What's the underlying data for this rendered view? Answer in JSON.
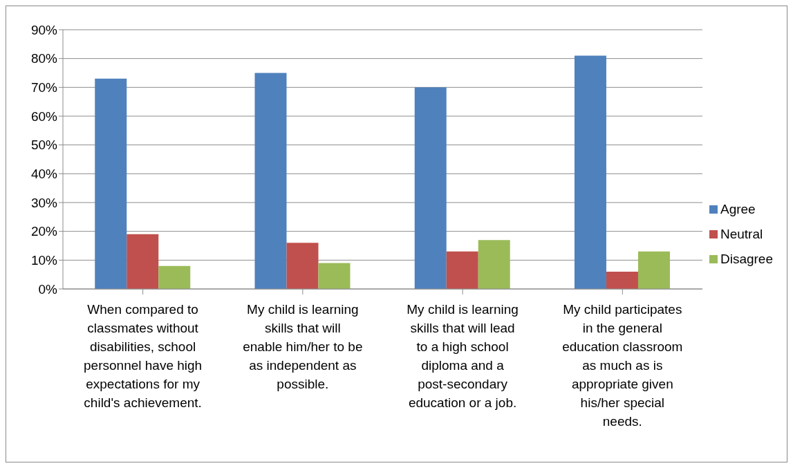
{
  "chart_data": {
    "type": "bar",
    "categories": [
      "When compared to classmates without disabilities, school personnel have high expectations for my child's achievement.",
      "My child is learning skills that will enable him/her to be as independent as possible.",
      "My child is learning skills that will lead to a high school diploma and a post-secondary education or a job.",
      "My child participates in the general education classroom as much as is appropriate given his/her special needs."
    ],
    "series": [
      {
        "name": "Agree",
        "color": "#4f81bd",
        "values": [
          73,
          75,
          70,
          81
        ]
      },
      {
        "name": "Neutral",
        "color": "#c0504d",
        "values": [
          19,
          16,
          13,
          6
        ]
      },
      {
        "name": "Disagree",
        "color": "#9bbb59",
        "values": [
          8,
          9,
          17,
          13
        ]
      }
    ],
    "ylim": [
      0,
      90
    ],
    "yticks": [
      {
        "value": 0,
        "label": "0%"
      },
      {
        "value": 10,
        "label": "10%"
      },
      {
        "value": 20,
        "label": "20%"
      },
      {
        "value": 30,
        "label": "30%"
      },
      {
        "value": 40,
        "label": "40%"
      },
      {
        "value": 50,
        "label": "50%"
      },
      {
        "value": 60,
        "label": "60%"
      },
      {
        "value": 70,
        "label": "70%"
      },
      {
        "value": 80,
        "label": "80%"
      },
      {
        "value": 90,
        "label": "90%"
      }
    ],
    "grid": "y",
    "legend": "right"
  }
}
